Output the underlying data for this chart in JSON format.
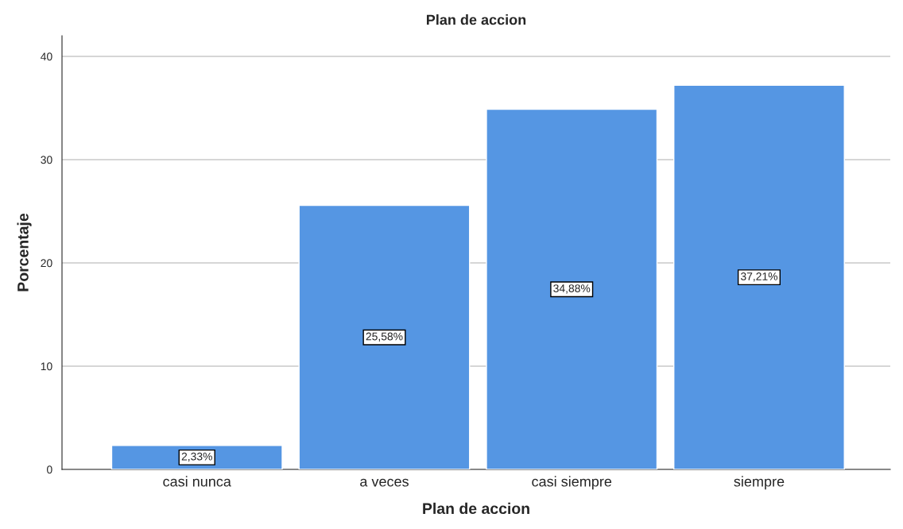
{
  "chart_data": {
    "type": "bar",
    "title": "Plan de accion",
    "xlabel": "Plan de accion",
    "ylabel": "Porcentaje",
    "categories": [
      "casi nunca",
      "a veces",
      "casi siempre",
      "siempre"
    ],
    "values": [
      2.33,
      25.58,
      34.88,
      37.21
    ],
    "value_labels": [
      "2,33%",
      "25,58%",
      "34,88%",
      "37,21%"
    ],
    "color": "#5596e3",
    "ylim": [
      0,
      42
    ],
    "yticks": [
      0,
      10,
      20,
      30,
      40
    ],
    "grid": "y",
    "legend": false
  }
}
